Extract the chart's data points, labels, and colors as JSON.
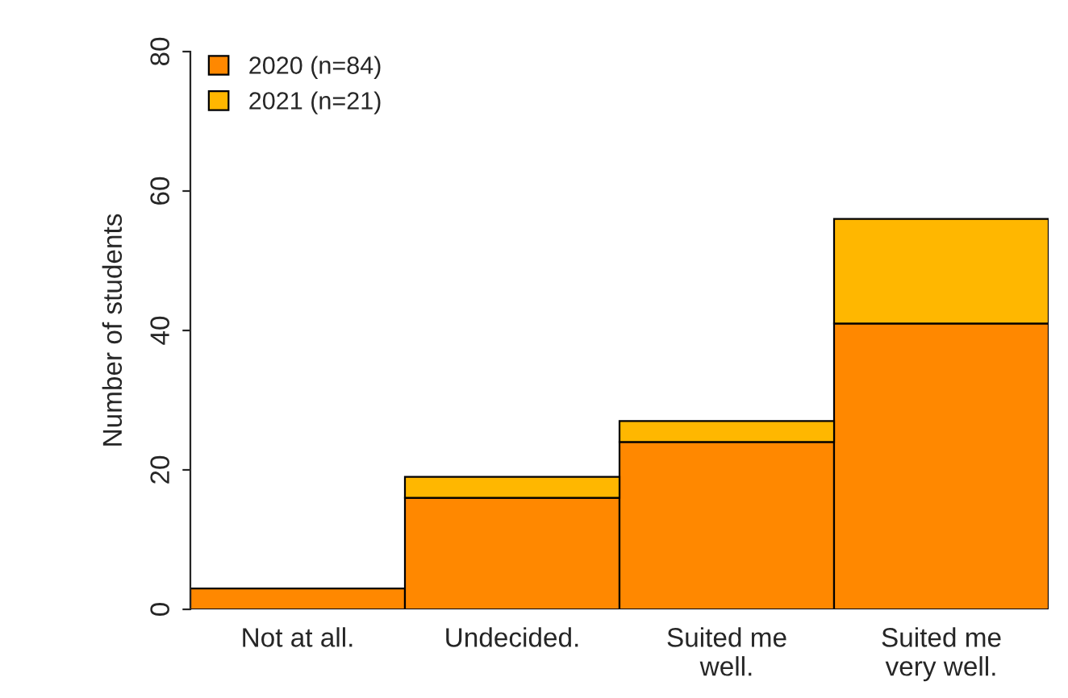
{
  "chart_data": {
    "type": "bar",
    "stacked": true,
    "ylabel": "Number of students",
    "categories": [
      "Not at all.",
      "Undecided.",
      "Suited me\nwell.",
      "Suited me\nvery well."
    ],
    "series": [
      {
        "name": "2020 (n=84)",
        "color": "#ff8800",
        "values": [
          3,
          16,
          24,
          41
        ]
      },
      {
        "name": "2021 (n=21)",
        "color": "#ffb700",
        "values": [
          0,
          3,
          3,
          15
        ]
      }
    ],
    "ylim": [
      0,
      80
    ],
    "yticks": [
      0,
      20,
      40,
      60,
      80
    ],
    "grid": false,
    "legend": "top left"
  }
}
